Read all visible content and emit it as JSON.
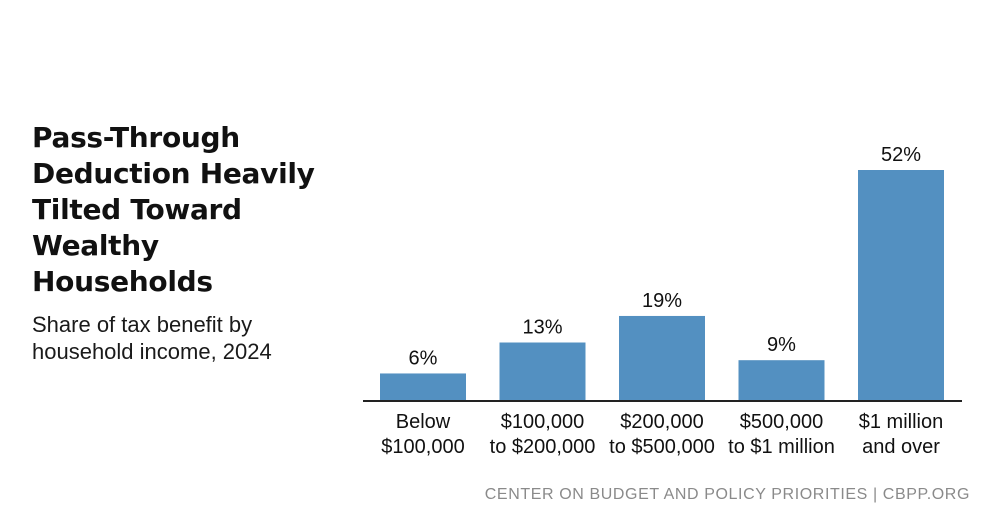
{
  "title": "Pass-Through Deduction Heavily Tilted Toward Wealthy Households",
  "subtitle": "Share of tax benefit by household income, 2024",
  "footer": "CENTER ON BUDGET AND POLICY PRIORITIES | CBPP.ORG",
  "colors": {
    "bar": "#5390c1",
    "axis": "#222222",
    "text": "#111111"
  },
  "chart_data": {
    "type": "bar",
    "title": "Pass-Through Deduction Heavily Tilted Toward Wealthy Households",
    "subtitle": "Share of tax benefit by household income, 2024",
    "categories": [
      [
        "Below",
        "$100,000"
      ],
      [
        "$100,000",
        "to $200,000"
      ],
      [
        "$200,000",
        "to $500,000"
      ],
      [
        "$500,000",
        "to $1 million"
      ],
      [
        "$1 million",
        "and over"
      ]
    ],
    "values": [
      6,
      13,
      19,
      9,
      52
    ],
    "data_labels": [
      "6%",
      "13%",
      "19%",
      "9%",
      "52%"
    ],
    "xlabel": "",
    "ylabel": "",
    "ylim": [
      0,
      60
    ],
    "grid": false,
    "legend": "none"
  }
}
